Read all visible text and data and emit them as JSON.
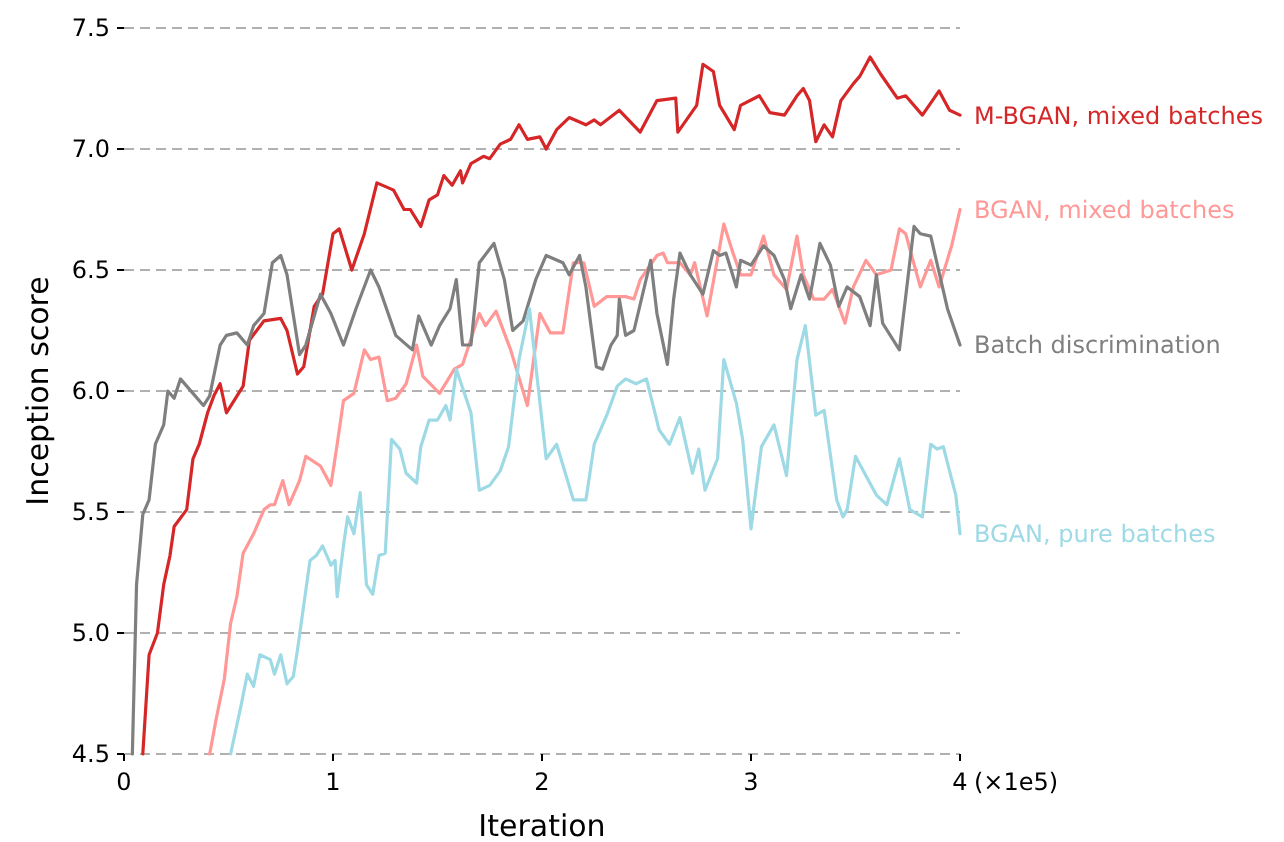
{
  "chart_data": {
    "type": "line",
    "xlabel": "Iteration",
    "ylabel": "Inception score",
    "annotations": [
      "(×1e5)"
    ],
    "xlim": [
      0,
      4
    ],
    "ylim": [
      4.5,
      7.5
    ],
    "xticks": [
      0,
      1,
      2,
      3,
      4
    ],
    "yticks": [
      4.5,
      {
        "value": 5,
        "label": "5.0"
      },
      5.5,
      {
        "value": 6,
        "label": "6.0"
      },
      6.5,
      {
        "value": 7,
        "label": "7.0"
      },
      7.5
    ],
    "grid": "y",
    "line_style": "solid",
    "marker": "none",
    "series": [
      {
        "name": "M-BGAN, mixed batches",
        "color": "#d62728",
        "x": [
          0.09,
          0.12,
          0.16,
          0.19,
          0.22,
          0.24,
          0.3,
          0.33,
          0.36,
          0.4,
          0.43,
          0.46,
          0.49,
          0.57,
          0.6,
          0.67,
          0.75,
          0.78,
          0.83,
          0.86,
          0.91,
          0.95,
          1.0,
          1.03,
          1.09,
          1.15,
          1.21,
          1.29,
          1.34,
          1.37,
          1.42,
          1.46,
          1.5,
          1.53,
          1.57,
          1.61,
          1.62,
          1.66,
          1.72,
          1.75,
          1.8,
          1.85,
          1.89,
          1.93,
          1.99,
          2.02,
          2.07,
          2.13,
          2.21,
          2.25,
          2.28,
          2.37,
          2.47,
          2.55,
          2.64,
          2.65,
          2.74,
          2.77,
          2.82,
          2.85,
          2.92,
          2.95,
          3.04,
          3.09,
          3.16,
          3.22,
          3.25,
          3.28,
          3.31,
          3.35,
          3.39,
          3.43,
          3.49,
          3.52,
          3.57,
          3.62,
          3.7,
          3.74,
          3.82,
          3.9,
          3.95,
          4.0
        ],
        "values": [
          4.5,
          4.91,
          5.0,
          5.2,
          5.32,
          5.44,
          5.51,
          5.72,
          5.78,
          5.91,
          5.98,
          6.03,
          5.91,
          6.02,
          6.21,
          6.29,
          6.3,
          6.25,
          6.07,
          6.1,
          6.35,
          6.4,
          6.65,
          6.67,
          6.5,
          6.65,
          6.86,
          6.83,
          6.75,
          6.75,
          6.68,
          6.79,
          6.81,
          6.89,
          6.85,
          6.91,
          6.86,
          6.94,
          6.97,
          6.96,
          7.02,
          7.04,
          7.1,
          7.04,
          7.05,
          7.0,
          7.08,
          7.13,
          7.1,
          7.12,
          7.1,
          7.16,
          7.07,
          7.2,
          7.21,
          7.07,
          7.18,
          7.35,
          7.32,
          7.18,
          7.08,
          7.18,
          7.22,
          7.15,
          7.14,
          7.22,
          7.25,
          7.2,
          7.03,
          7.1,
          7.05,
          7.2,
          7.27,
          7.3,
          7.38,
          7.31,
          7.21,
          7.22,
          7.14,
          7.24,
          7.16,
          7.14
        ]
      },
      {
        "name": "BGAN, mixed batches",
        "color": "#ff9896",
        "x": [
          0.41,
          0.44,
          0.48,
          0.51,
          0.54,
          0.57,
          0.62,
          0.67,
          0.7,
          0.72,
          0.76,
          0.79,
          0.84,
          0.87,
          0.94,
          0.99,
          1.02,
          1.05,
          1.1,
          1.15,
          1.18,
          1.22,
          1.26,
          1.3,
          1.35,
          1.4,
          1.43,
          1.51,
          1.58,
          1.62,
          1.7,
          1.73,
          1.78,
          1.85,
          1.93,
          1.99,
          2.04,
          2.1,
          2.15,
          2.2,
          2.25,
          2.31,
          2.4,
          2.44,
          2.47,
          2.55,
          2.58,
          2.6,
          2.66,
          2.71,
          2.73,
          2.79,
          2.87,
          2.91,
          2.95,
          3.0,
          3.06,
          3.11,
          3.17,
          3.22,
          3.25,
          3.3,
          3.35,
          3.39,
          3.45,
          3.49,
          3.55,
          3.6,
          3.67,
          3.71,
          3.74,
          3.81,
          3.86,
          3.9,
          3.96,
          4.0
        ],
        "values": [
          4.5,
          4.64,
          4.81,
          5.04,
          5.15,
          5.33,
          5.41,
          5.51,
          5.53,
          5.53,
          5.63,
          5.53,
          5.63,
          5.73,
          5.69,
          5.61,
          5.78,
          5.96,
          5.99,
          6.17,
          6.13,
          6.14,
          5.96,
          5.97,
          6.03,
          6.19,
          6.06,
          5.99,
          6.09,
          6.11,
          6.32,
          6.27,
          6.33,
          6.17,
          5.94,
          6.32,
          6.24,
          6.24,
          6.53,
          6.53,
          6.35,
          6.39,
          6.39,
          6.38,
          6.46,
          6.56,
          6.57,
          6.53,
          6.53,
          6.48,
          6.53,
          6.31,
          6.69,
          6.58,
          6.48,
          6.48,
          6.64,
          6.48,
          6.42,
          6.64,
          6.48,
          6.38,
          6.38,
          6.42,
          6.28,
          6.43,
          6.54,
          6.48,
          6.5,
          6.67,
          6.65,
          6.43,
          6.54,
          6.43,
          6.6,
          6.75
        ]
      },
      {
        "name": "Batch discrimination",
        "color": "#7f7f7f",
        "x": [
          0.04,
          0.06,
          0.09,
          0.12,
          0.15,
          0.19,
          0.21,
          0.24,
          0.27,
          0.33,
          0.38,
          0.41,
          0.46,
          0.49,
          0.54,
          0.59,
          0.62,
          0.67,
          0.71,
          0.75,
          0.78,
          0.84,
          0.87,
          0.94,
          0.99,
          1.05,
          1.11,
          1.18,
          1.22,
          1.3,
          1.38,
          1.41,
          1.47,
          1.51,
          1.56,
          1.59,
          1.62,
          1.66,
          1.7,
          1.77,
          1.82,
          1.86,
          1.91,
          1.97,
          2.02,
          2.1,
          2.13,
          2.18,
          2.21,
          2.26,
          2.29,
          2.33,
          2.36,
          2.37,
          2.4,
          2.44,
          2.52,
          2.55,
          2.6,
          2.63,
          2.66,
          2.71,
          2.77,
          2.82,
          2.85,
          2.88,
          2.93,
          2.95,
          3.0,
          3.06,
          3.11,
          3.16,
          3.19,
          3.24,
          3.28,
          3.33,
          3.38,
          3.42,
          3.46,
          3.52,
          3.57,
          3.6,
          3.63,
          3.71,
          3.78,
          3.81,
          3.86,
          3.94,
          4.0
        ],
        "values": [
          4.5,
          5.2,
          5.49,
          5.55,
          5.78,
          5.86,
          6.0,
          5.97,
          6.05,
          5.99,
          5.94,
          5.98,
          6.19,
          6.23,
          6.24,
          6.19,
          6.27,
          6.32,
          6.53,
          6.56,
          6.48,
          6.15,
          6.19,
          6.4,
          6.32,
          6.19,
          6.34,
          6.5,
          6.43,
          6.23,
          6.17,
          6.31,
          6.19,
          6.27,
          6.34,
          6.46,
          6.19,
          6.19,
          6.53,
          6.61,
          6.46,
          6.25,
          6.29,
          6.46,
          6.56,
          6.53,
          6.48,
          6.56,
          6.43,
          6.1,
          6.09,
          6.19,
          6.23,
          6.38,
          6.23,
          6.25,
          6.54,
          6.32,
          6.11,
          6.38,
          6.57,
          6.48,
          6.4,
          6.58,
          6.56,
          6.57,
          6.43,
          6.54,
          6.52,
          6.6,
          6.56,
          6.46,
          6.34,
          6.48,
          6.38,
          6.61,
          6.52,
          6.35,
          6.43,
          6.39,
          6.27,
          6.48,
          6.28,
          6.17,
          6.68,
          6.65,
          6.64,
          6.34,
          6.19
        ]
      },
      {
        "name": "BGAN, pure batches",
        "color": "#9edae5",
        "x": [
          0.51,
          0.56,
          0.59,
          0.62,
          0.65,
          0.7,
          0.72,
          0.75,
          0.78,
          0.81,
          0.83,
          0.89,
          0.92,
          0.95,
          0.99,
          1.01,
          1.02,
          1.05,
          1.07,
          1.1,
          1.13,
          1.16,
          1.19,
          1.22,
          1.25,
          1.28,
          1.32,
          1.35,
          1.4,
          1.42,
          1.46,
          1.5,
          1.54,
          1.56,
          1.59,
          1.66,
          1.7,
          1.75,
          1.8,
          1.84,
          1.89,
          1.94,
          2.02,
          2.07,
          2.15,
          2.21,
          2.25,
          2.31,
          2.36,
          2.4,
          2.45,
          2.5,
          2.56,
          2.61,
          2.66,
          2.72,
          2.75,
          2.78,
          2.84,
          2.87,
          2.93,
          2.96,
          3.0,
          3.05,
          3.11,
          3.17,
          3.22,
          3.26,
          3.31,
          3.35,
          3.41,
          3.44,
          3.46,
          3.5,
          3.55,
          3.6,
          3.65,
          3.71,
          3.76,
          3.82,
          3.86,
          3.89,
          3.92,
          3.98,
          4.0
        ],
        "values": [
          4.5,
          4.7,
          4.83,
          4.78,
          4.91,
          4.89,
          4.83,
          4.91,
          4.79,
          4.82,
          4.93,
          5.3,
          5.32,
          5.36,
          5.28,
          5.3,
          5.15,
          5.36,
          5.48,
          5.41,
          5.58,
          5.2,
          5.16,
          5.32,
          5.33,
          5.8,
          5.76,
          5.66,
          5.62,
          5.77,
          5.88,
          5.88,
          5.94,
          5.88,
          6.09,
          5.91,
          5.59,
          5.61,
          5.67,
          5.77,
          6.13,
          6.34,
          5.72,
          5.78,
          5.55,
          5.55,
          5.78,
          5.9,
          6.02,
          6.05,
          6.03,
          6.05,
          5.84,
          5.78,
          5.89,
          5.66,
          5.76,
          5.59,
          5.72,
          6.13,
          5.95,
          5.8,
          5.43,
          5.77,
          5.86,
          5.65,
          6.13,
          6.27,
          5.9,
          5.92,
          5.55,
          5.48,
          5.51,
          5.73,
          5.65,
          5.57,
          5.53,
          5.72,
          5.51,
          5.48,
          5.78,
          5.76,
          5.77,
          5.57,
          5.41
        ]
      }
    ]
  }
}
